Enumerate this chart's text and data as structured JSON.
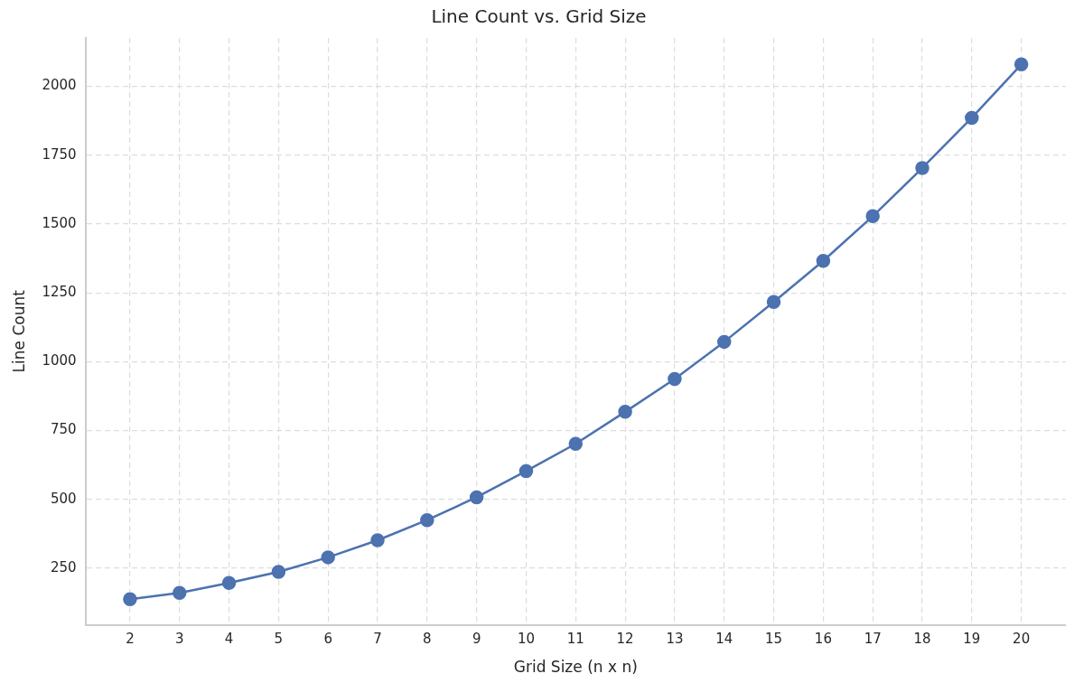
{
  "chart_data": {
    "type": "line",
    "title": "Line Count vs. Grid Size",
    "xlabel": "Grid Size (n x n)",
    "ylabel": "Line Count",
    "x": [
      2,
      3,
      4,
      5,
      6,
      7,
      8,
      9,
      10,
      11,
      12,
      13,
      14,
      15,
      16,
      17,
      18,
      19,
      20
    ],
    "series": [
      {
        "color": "#4c72b0",
        "values": [
          138,
          161,
          197,
          237,
          290,
          352,
          425,
          508,
          603,
          702,
          818,
          937,
          1072,
          1217,
          1366,
          1528,
          1703,
          1885,
          2079
        ]
      }
    ],
    "xlim": [
      1.1,
      20.9
    ],
    "xticks": [
      2,
      3,
      4,
      5,
      6,
      7,
      8,
      9,
      10,
      11,
      12,
      13,
      14,
      15,
      16,
      17,
      18,
      19,
      20
    ],
    "ylim": [
      45,
      2175
    ],
    "yticks": [
      250,
      500,
      750,
      1000,
      1250,
      1500,
      1750,
      2000
    ],
    "grid": true,
    "legend": false,
    "marker": "circle",
    "line_style": "solid"
  }
}
